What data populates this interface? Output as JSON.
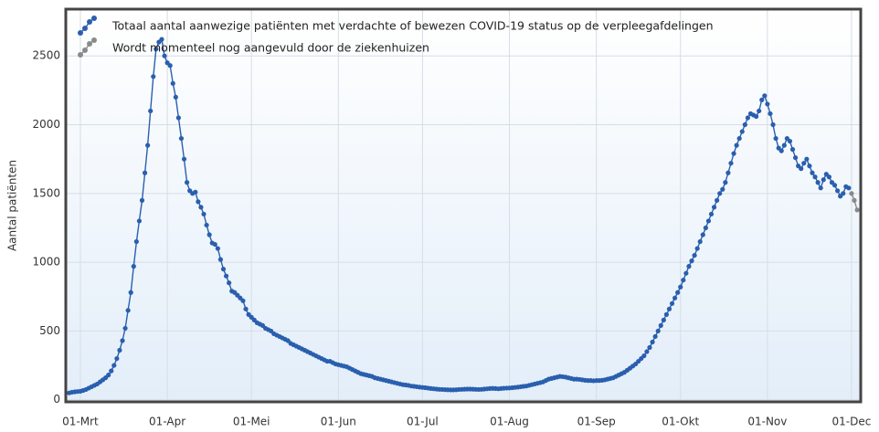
{
  "chart_data": {
    "type": "line",
    "ylabel": "Aantal patiënten",
    "ylim": [
      -15,
      2840
    ],
    "yticks": [
      0,
      500,
      1000,
      1500,
      2000,
      2500
    ],
    "xticks": [
      "01-Mrt",
      "01-Apr",
      "01-Mei",
      "01-Jun",
      "01-Jul",
      "01-Aug",
      "01-Sep",
      "01-Okt",
      "01-Nov",
      "01-Dec"
    ],
    "grid": true,
    "legend": "top-left",
    "series": [
      {
        "name": "Totaal aantal aanwezige patiënten met verdachte of bewezen COVID-19 status op de verpleegafdelingen",
        "color": "#2a5fae",
        "x": [
          "26-Feb",
          "27-Feb",
          "28-Feb",
          "29-Feb",
          "01-Mrt",
          "02-Mrt",
          "03-Mrt",
          "04-Mrt",
          "05-Mrt",
          "06-Mrt",
          "07-Mrt",
          "08-Mrt",
          "09-Mrt",
          "10-Mrt",
          "11-Mrt",
          "12-Mrt",
          "13-Mrt",
          "14-Mrt",
          "15-Mrt",
          "16-Mrt",
          "17-Mrt",
          "18-Mrt",
          "19-Mrt",
          "20-Mrt",
          "21-Mrt",
          "22-Mrt",
          "23-Mrt",
          "24-Mrt",
          "25-Mrt",
          "26-Mrt",
          "27-Mrt",
          "28-Mrt",
          "29-Mrt",
          "30-Mrt",
          "31-Mrt",
          "01-Apr",
          "02-Apr",
          "03-Apr",
          "04-Apr",
          "05-Apr",
          "06-Apr",
          "07-Apr",
          "08-Apr",
          "09-Apr",
          "10-Apr",
          "11-Apr",
          "12-Apr",
          "13-Apr",
          "14-Apr",
          "15-Apr",
          "16-Apr",
          "17-Apr",
          "18-Apr",
          "19-Apr",
          "20-Apr",
          "21-Apr",
          "22-Apr",
          "23-Apr",
          "24-Apr",
          "25-Apr",
          "26-Apr",
          "27-Apr",
          "28-Apr",
          "29-Apr",
          "30-Apr",
          "01-Mei",
          "02-Mei",
          "03-Mei",
          "04-Mei",
          "05-Mei",
          "06-Mei",
          "07-Mei",
          "08-Mei",
          "09-Mei",
          "10-Mei",
          "11-Mei",
          "12-Mei",
          "13-Mei",
          "14-Mei",
          "15-Mei",
          "16-Mei",
          "17-Mei",
          "18-Mei",
          "19-Mei",
          "20-Mei",
          "21-Mei",
          "22-Mei",
          "23-Mei",
          "24-Mei",
          "25-Mei",
          "26-Mei",
          "27-Mei",
          "28-Mei",
          "29-Mei",
          "30-Mei",
          "31-Mei",
          "01-Jun",
          "02-Jun",
          "03-Jun",
          "04-Jun",
          "05-Jun",
          "06-Jun",
          "07-Jun",
          "08-Jun",
          "09-Jun",
          "10-Jun",
          "11-Jun",
          "12-Jun",
          "13-Jun",
          "14-Jun",
          "15-Jun",
          "16-Jun",
          "17-Jun",
          "18-Jun",
          "19-Jun",
          "20-Jun",
          "21-Jun",
          "22-Jun",
          "23-Jun",
          "24-Jun",
          "25-Jun",
          "26-Jun",
          "27-Jun",
          "28-Jun",
          "29-Jun",
          "30-Jun",
          "01-Jul",
          "02-Jul",
          "03-Jul",
          "04-Jul",
          "05-Jul",
          "06-Jul",
          "07-Jul",
          "08-Jul",
          "09-Jul",
          "10-Jul",
          "11-Jul",
          "12-Jul",
          "13-Jul",
          "14-Jul",
          "15-Jul",
          "16-Jul",
          "17-Jul",
          "18-Jul",
          "19-Jul",
          "20-Jul",
          "21-Jul",
          "22-Jul",
          "23-Jul",
          "24-Jul",
          "25-Jul",
          "26-Jul",
          "27-Jul",
          "28-Jul",
          "29-Jul",
          "30-Jul",
          "31-Jul",
          "01-Aug",
          "02-Aug",
          "03-Aug",
          "04-Aug",
          "05-Aug",
          "06-Aug",
          "07-Aug",
          "08-Aug",
          "09-Aug",
          "10-Aug",
          "11-Aug",
          "12-Aug",
          "13-Aug",
          "14-Aug",
          "15-Aug",
          "16-Aug",
          "17-Aug",
          "18-Aug",
          "19-Aug",
          "20-Aug",
          "21-Aug",
          "22-Aug",
          "23-Aug",
          "24-Aug",
          "25-Aug",
          "26-Aug",
          "27-Aug",
          "28-Aug",
          "29-Aug",
          "30-Aug",
          "31-Aug",
          "01-Sep",
          "02-Sep",
          "03-Sep",
          "04-Sep",
          "05-Sep",
          "06-Sep",
          "07-Sep",
          "08-Sep",
          "09-Sep",
          "10-Sep",
          "11-Sep",
          "12-Sep",
          "13-Sep",
          "14-Sep",
          "15-Sep",
          "16-Sep",
          "17-Sep",
          "18-Sep",
          "19-Sep",
          "20-Sep",
          "21-Sep",
          "22-Sep",
          "23-Sep",
          "24-Sep",
          "25-Sep",
          "26-Sep",
          "27-Sep",
          "28-Sep",
          "29-Sep",
          "30-Sep",
          "01-Okt",
          "02-Okt",
          "03-Okt",
          "04-Okt",
          "05-Okt",
          "06-Okt",
          "07-Okt",
          "08-Okt",
          "09-Okt",
          "10-Okt",
          "11-Okt",
          "12-Okt",
          "13-Okt",
          "14-Okt",
          "15-Okt",
          "16-Okt",
          "17-Okt",
          "18-Okt",
          "19-Okt",
          "20-Okt",
          "21-Okt",
          "22-Okt",
          "23-Okt",
          "24-Okt",
          "25-Okt",
          "26-Okt",
          "27-Okt",
          "28-Okt",
          "29-Okt",
          "30-Okt",
          "31-Okt",
          "01-Nov",
          "02-Nov",
          "03-Nov",
          "04-Nov",
          "05-Nov",
          "06-Nov",
          "07-Nov",
          "08-Nov",
          "09-Nov",
          "10-Nov",
          "11-Nov",
          "12-Nov",
          "13-Nov",
          "14-Nov",
          "15-Nov",
          "16-Nov",
          "17-Nov",
          "18-Nov",
          "19-Nov",
          "20-Nov",
          "21-Nov",
          "22-Nov",
          "23-Nov",
          "24-Nov",
          "25-Nov",
          "26-Nov",
          "27-Nov",
          "28-Nov",
          "29-Nov",
          "30-Nov"
        ],
        "values": [
          50,
          55,
          58,
          60,
          62,
          68,
          75,
          85,
          95,
          105,
          115,
          130,
          145,
          160,
          180,
          210,
          250,
          300,
          360,
          430,
          520,
          650,
          780,
          970,
          1150,
          1300,
          1450,
          1650,
          1850,
          2100,
          2350,
          2550,
          2600,
          2620,
          2500,
          2450,
          2430,
          2300,
          2200,
          2050,
          1900,
          1750,
          1580,
          1520,
          1500,
          1510,
          1440,
          1400,
          1350,
          1270,
          1200,
          1140,
          1130,
          1100,
          1020,
          950,
          900,
          850,
          790,
          780,
          760,
          740,
          720,
          660,
          620,
          600,
          580,
          560,
          550,
          540,
          520,
          510,
          500,
          480,
          470,
          460,
          450,
          440,
          430,
          410,
          400,
          390,
          380,
          370,
          360,
          350,
          340,
          330,
          320,
          310,
          300,
          290,
          280,
          280,
          270,
          260,
          255,
          250,
          245,
          240,
          230,
          220,
          210,
          200,
          190,
          185,
          180,
          175,
          170,
          160,
          155,
          150,
          145,
          140,
          135,
          130,
          125,
          120,
          115,
          110,
          108,
          105,
          100,
          98,
          95,
          92,
          90,
          88,
          85,
          82,
          80,
          78,
          76,
          75,
          74,
          73,
          72,
          72,
          73,
          75,
          76,
          77,
          78,
          78,
          77,
          76,
          75,
          76,
          78,
          80,
          82,
          83,
          82,
          80,
          82,
          84,
          85,
          86,
          88,
          90,
          92,
          95,
          98,
          100,
          105,
          110,
          115,
          120,
          125,
          130,
          140,
          150,
          155,
          160,
          165,
          170,
          168,
          165,
          160,
          155,
          150,
          150,
          148,
          145,
          142,
          140,
          140,
          138,
          140,
          140,
          142,
          145,
          150,
          155,
          160,
          170,
          180,
          190,
          200,
          215,
          230,
          245,
          260,
          280,
          300,
          320,
          350,
          380,
          420,
          460,
          500,
          540,
          580,
          620,
          660,
          700,
          740,
          780,
          820,
          870,
          920,
          970,
          1010,
          1050,
          1100,
          1150,
          1200,
          1250,
          1300,
          1350,
          1400,
          1450,
          1500,
          1530,
          1580,
          1650,
          1720,
          1790,
          1850,
          1900,
          1950,
          2000,
          2050,
          2080,
          2070,
          2060,
          2100,
          2180,
          2210,
          2150,
          2080,
          2000,
          1900,
          1830,
          1810,
          1850,
          1900,
          1880,
          1820,
          1760,
          1700,
          1680,
          1720,
          1750,
          1700,
          1650,
          1620,
          1580,
          1540,
          1600,
          1640,
          1620,
          1580,
          1560,
          1520,
          1480,
          1500,
          1550,
          1540
        ]
      },
      {
        "name": "Wordt momenteel nog aangevuld door de ziekenhuizen",
        "color": "#8a8a8a",
        "x": [
          "01-Dec",
          "02-Dec",
          "03-Dec"
        ],
        "values": [
          1500,
          1450,
          1380
        ]
      }
    ]
  }
}
